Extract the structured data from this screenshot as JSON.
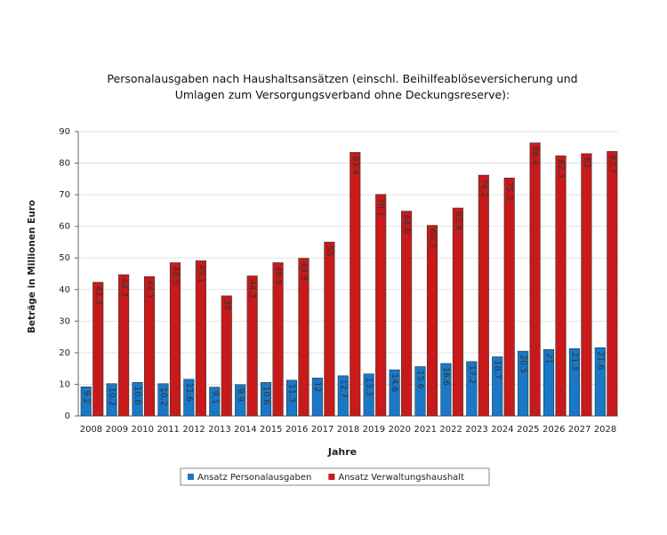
{
  "chart_data": {
    "type": "bar",
    "title": "Personalausgaben nach Haushaltsansätzen (einschl. Beihilfeablöseversicherung und Umlagen zum Versorgungsverband ohne Deckungsreserve):",
    "x_label": "Jahre",
    "y_label": "Beträge in Millionen Euro",
    "categories": [
      "2008",
      "2009",
      "2010",
      "2011",
      "2012",
      "2013",
      "2014",
      "2015",
      "2016",
      "2017",
      "2018",
      "2019",
      "2020",
      "2021",
      "2022",
      "2023",
      "2024",
      "2025",
      "2026",
      "2027",
      "2028"
    ],
    "series": [
      {
        "name": "Ansatz Personalausgaben",
        "color": "#1a78c8",
        "values": [
          9.2,
          10.2,
          10.6,
          10.2,
          11.6,
          9.1,
          9.9,
          10.6,
          11.3,
          12.0,
          12.7,
          13.3,
          14.6,
          15.6,
          16.6,
          17.2,
          18.7,
          20.5,
          21.0,
          21.3,
          21.6
        ]
      },
      {
        "name": "Ansatz Verwaltungshaushalt",
        "color": "#c81a1a",
        "values": [
          42.3,
          44.7,
          44.1,
          48.5,
          49.1,
          38.0,
          44.3,
          48.5,
          49.9,
          55.0,
          83.4,
          70.1,
          64.8,
          60.3,
          65.8,
          76.2,
          75.3,
          86.4,
          82.3,
          83.0,
          83.7
        ]
      }
    ],
    "ylim": [
      0,
      90
    ],
    "yticks": [
      0,
      10,
      20,
      30,
      40,
      50,
      60,
      70,
      80,
      90
    ],
    "grid": true,
    "legend": "bottom"
  }
}
